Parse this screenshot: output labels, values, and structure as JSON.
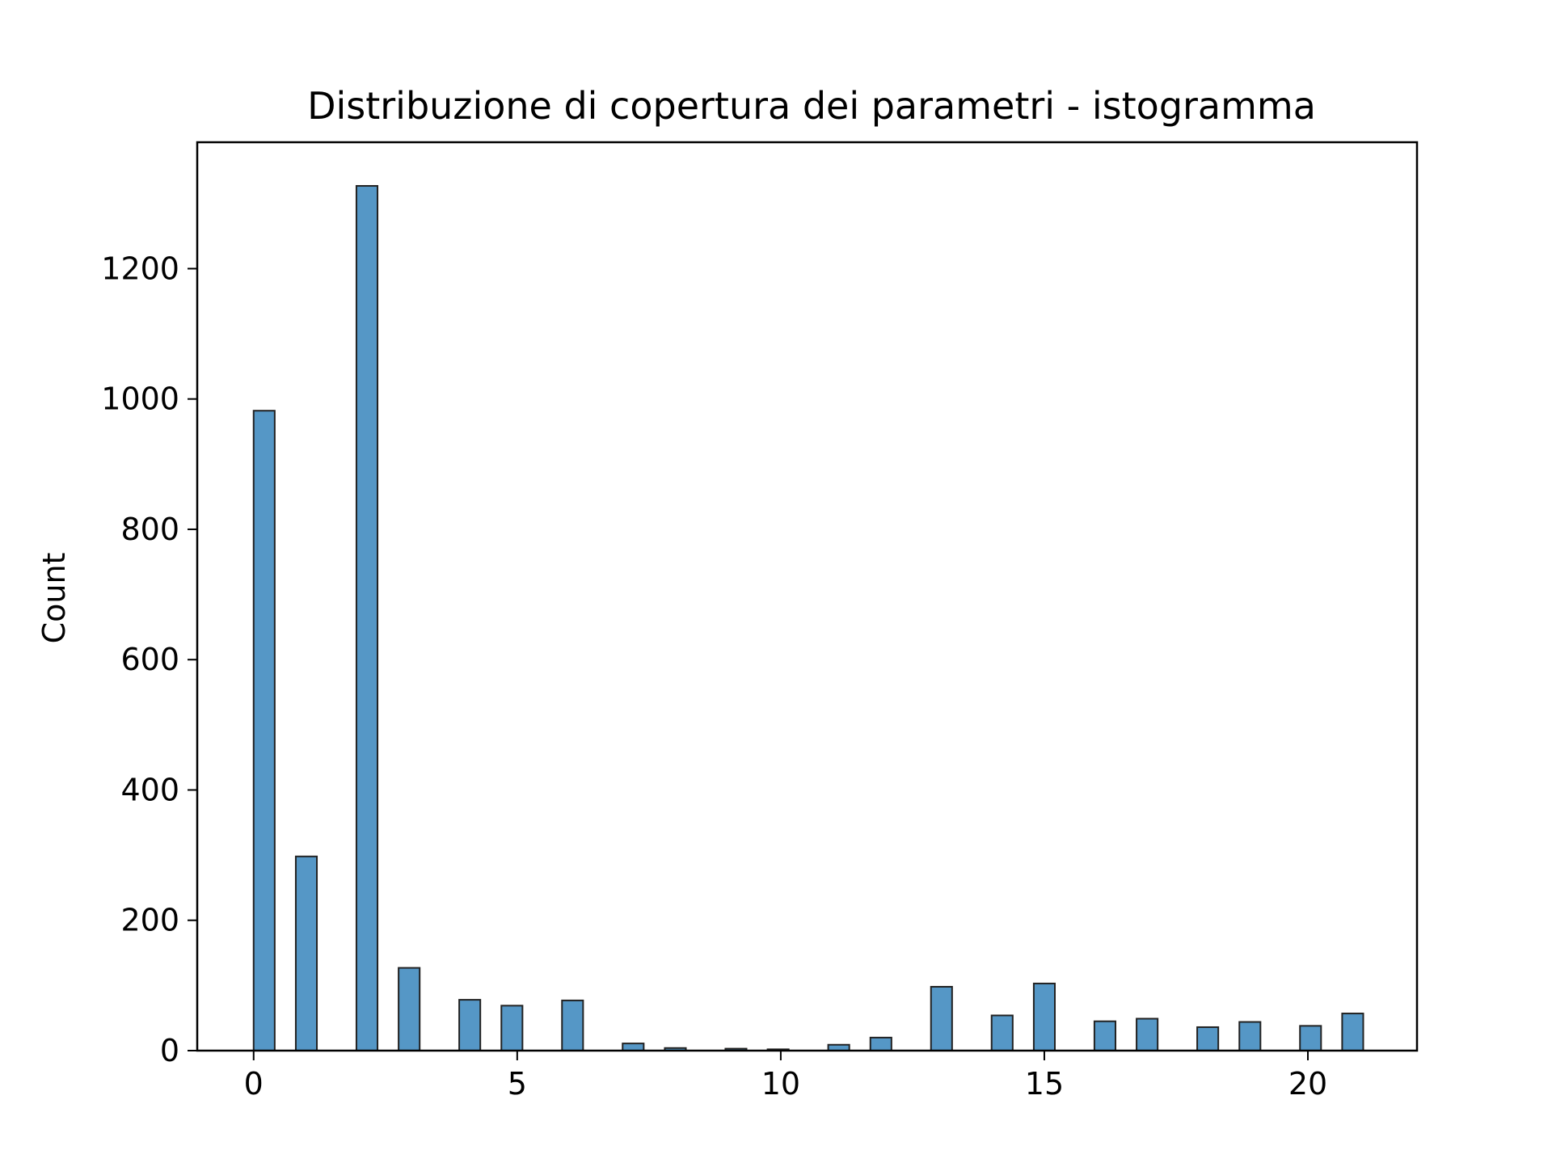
{
  "chart_data": {
    "type": "bar",
    "title": "Distribuzione di copertura dei parametri - istogramma",
    "xlabel": "",
    "ylabel": "Count",
    "xlim": [
      -1.07,
      22.07
    ],
    "ylim": [
      0,
      1394
    ],
    "xticks": [
      0,
      5,
      10,
      15,
      20
    ],
    "yticks": [
      0,
      200,
      400,
      600,
      800,
      1000,
      1200
    ],
    "grid": false,
    "legend": "none",
    "bar_color": "#5597c6",
    "edge_color": "#222222",
    "bins": [
      {
        "x": 0.0,
        "value": 982
      },
      {
        "x": 0.8,
        "value": 298
      },
      {
        "x": 1.95,
        "value": 1327
      },
      {
        "x": 2.75,
        "value": 127
      },
      {
        "x": 3.9,
        "value": 78
      },
      {
        "x": 4.7,
        "value": 69
      },
      {
        "x": 5.85,
        "value": 77
      },
      {
        "x": 7.0,
        "value": 11
      },
      {
        "x": 7.8,
        "value": 4
      },
      {
        "x": 8.95,
        "value": 3
      },
      {
        "x": 9.75,
        "value": 2
      },
      {
        "x": 10.9,
        "value": 9
      },
      {
        "x": 11.7,
        "value": 20
      },
      {
        "x": 12.85,
        "value": 98
      },
      {
        "x": 14.0,
        "value": 54
      },
      {
        "x": 14.8,
        "value": 103
      },
      {
        "x": 15.95,
        "value": 45
      },
      {
        "x": 16.75,
        "value": 49
      },
      {
        "x": 17.9,
        "value": 36
      },
      {
        "x": 18.7,
        "value": 44
      },
      {
        "x": 19.85,
        "value": 38
      },
      {
        "x": 20.65,
        "value": 57
      }
    ],
    "bin_width": 0.4
  }
}
